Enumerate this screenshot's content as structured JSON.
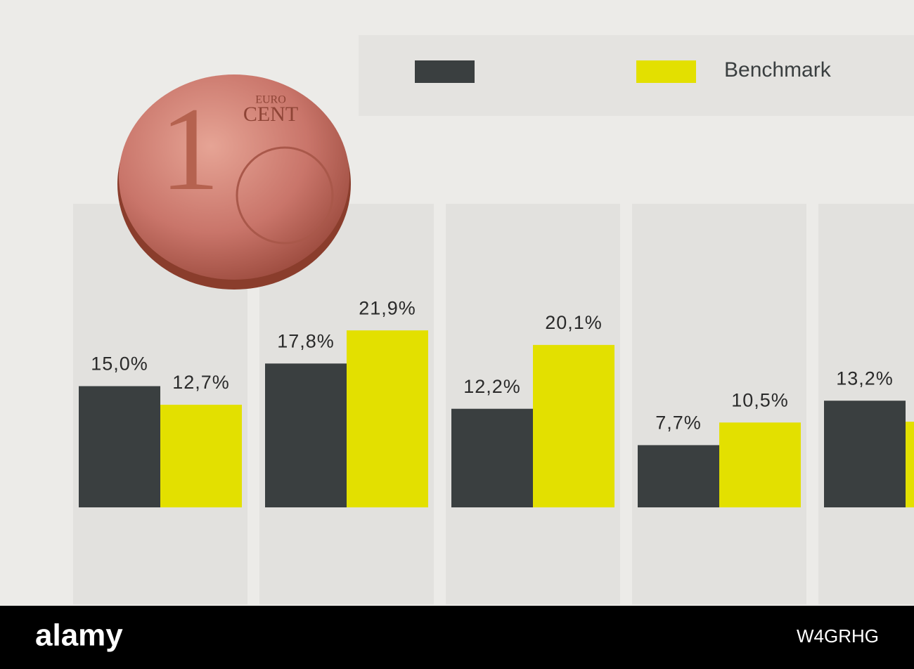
{
  "chart_data": {
    "type": "bar",
    "categories": [
      null,
      null,
      null,
      null,
      null
    ],
    "series": [
      {
        "color": "#3a3f40",
        "values": [
          15.0,
          17.8,
          12.2,
          7.7,
          13.2
        ],
        "value_labels": [
          "15,0%",
          "17,8%",
          "12,2%",
          "7,7%",
          "13,2%"
        ]
      },
      {
        "name": "Benchmark",
        "color": "#e3e000",
        "values": [
          12.7,
          21.9,
          20.1,
          10.5,
          10.6
        ],
        "value_labels": [
          "12,7%",
          "21,9%",
          "20,1%",
          "10,5%",
          null
        ]
      }
    ]
  },
  "coin": {
    "denomination": "1",
    "euro": "EURO",
    "cent": "CENT"
  },
  "footer": {
    "brand": "alamy",
    "image_id": "W4GRHG"
  }
}
